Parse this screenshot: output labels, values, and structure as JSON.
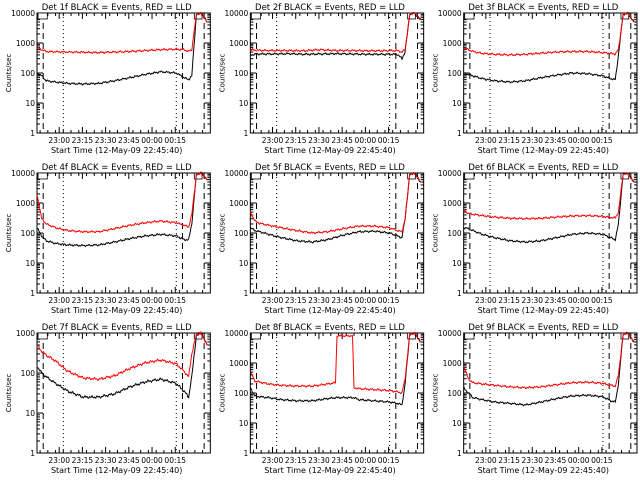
{
  "figure": {
    "start_time_label": "Start Time (12-May-09 22:45:40)",
    "ylabel": "Counts/sec",
    "colors": {
      "events": "#000000",
      "lld": "#ff0000"
    }
  },
  "chart_data": [
    {
      "type": "line",
      "title": "Det 1f BLACK = Events, RED = LLD",
      "xlabel": "Start Time (12-May-09 22:45:40)",
      "ylabel": "Counts/sec",
      "x_ticks": [
        "23:00",
        "23:15",
        "23:30",
        "23:45",
        "00:00",
        "00:15"
      ],
      "y_ticks": [
        "1",
        "10",
        "100",
        "1000",
        "10000"
      ],
      "ylim": [
        1,
        10000
      ],
      "yscale": "log",
      "series": [
        {
          "color": "#000000",
          "x_min": [
            0,
            3,
            6,
            12,
            20,
            30,
            40,
            50,
            60,
            70,
            80,
            90,
            95,
            98,
            100,
            103,
            106,
            110
          ],
          "values": [
            100,
            80,
            55,
            50,
            45,
            43,
            45,
            55,
            70,
            90,
            110,
            100,
            70,
            60,
            80,
            9000,
            10000,
            5000
          ]
        },
        {
          "color": "#ff0000",
          "x_min": [
            0,
            3,
            6,
            12,
            20,
            30,
            40,
            50,
            60,
            70,
            80,
            90,
            95,
            98,
            100,
            103,
            106,
            110
          ],
          "values": [
            700,
            600,
            520,
            510,
            500,
            490,
            480,
            500,
            520,
            560,
            600,
            620,
            600,
            520,
            600,
            9000,
            10000,
            5000
          ]
        }
      ]
    },
    {
      "type": "line",
      "title": "Det 2f BLACK = Events, RED = LLD",
      "xlabel": "Start Time (12-May-09 22:45:40)",
      "ylabel": "Counts/sec",
      "x_ticks": [
        "23:00",
        "23:15",
        "23:30",
        "23:45",
        "00:00",
        "00:15"
      ],
      "y_ticks": [
        "1",
        "10",
        "100",
        "1000",
        "10000"
      ],
      "ylim": [
        1,
        10000
      ],
      "yscale": "log",
      "series": [
        {
          "color": "#000000",
          "x_min": [
            0,
            3,
            6,
            15,
            25,
            35,
            45,
            55,
            65,
            75,
            85,
            95,
            98,
            100,
            103,
            106,
            110
          ],
          "values": [
            400,
            420,
            430,
            430,
            440,
            420,
            430,
            440,
            430,
            420,
            420,
            420,
            300,
            500,
            9000,
            10000,
            6000
          ]
        },
        {
          "color": "#ff0000",
          "x_min": [
            0,
            3,
            6,
            15,
            25,
            35,
            45,
            55,
            65,
            75,
            85,
            95,
            98,
            100,
            103,
            106,
            110
          ],
          "values": [
            600,
            580,
            570,
            560,
            560,
            550,
            600,
            560,
            560,
            550,
            550,
            560,
            500,
            600,
            9000,
            10000,
            6000
          ]
        }
      ]
    },
    {
      "type": "line",
      "title": "Det 3f BLACK = Events, RED = LLD",
      "xlabel": "Start Time (12-May-09 22:45:40)",
      "ylabel": "Counts/sec",
      "x_ticks": [
        "23:00",
        "23:15",
        "23:30",
        "23:45",
        "00:00",
        "00:15"
      ],
      "y_ticks": [
        "1",
        "10",
        "100",
        "1000",
        "10000"
      ],
      "ylim": [
        1,
        10000
      ],
      "yscale": "log",
      "series": [
        {
          "color": "#000000",
          "x_min": [
            0,
            3,
            6,
            12,
            20,
            30,
            40,
            50,
            60,
            70,
            80,
            90,
            95,
            98,
            100,
            103,
            106,
            110
          ],
          "values": [
            100,
            90,
            80,
            65,
            55,
            50,
            55,
            70,
            85,
            100,
            95,
            80,
            65,
            60,
            400,
            9000,
            10000,
            5000
          ]
        },
        {
          "color": "#ff0000",
          "x_min": [
            0,
            3,
            6,
            12,
            20,
            30,
            40,
            50,
            60,
            70,
            80,
            90,
            95,
            98,
            100,
            103,
            106,
            110
          ],
          "values": [
            700,
            600,
            520,
            450,
            420,
            400,
            420,
            460,
            500,
            520,
            520,
            480,
            450,
            430,
            600,
            9000,
            10000,
            5000
          ]
        }
      ]
    },
    {
      "type": "line",
      "title": "Det 4f BLACK = Events, RED = LLD",
      "xlabel": "Start Time (12-May-09 22:45:40)",
      "ylabel": "Counts/sec",
      "x_ticks": [
        "23:00",
        "23:15",
        "23:30",
        "23:45",
        "00:00",
        "00:15"
      ],
      "y_ticks": [
        "1",
        "10",
        "100",
        "1000",
        "10000"
      ],
      "ylim": [
        1,
        10000
      ],
      "yscale": "log",
      "series": [
        {
          "color": "#000000",
          "x_min": [
            0,
            3,
            6,
            12,
            20,
            30,
            40,
            50,
            60,
            70,
            80,
            90,
            95,
            98,
            100,
            103,
            106,
            110
          ],
          "values": [
            150,
            80,
            55,
            45,
            40,
            38,
            40,
            50,
            65,
            80,
            90,
            80,
            60,
            60,
            200,
            9000,
            10000,
            6000
          ]
        },
        {
          "color": "#ff0000",
          "x_min": [
            0,
            3,
            6,
            12,
            20,
            30,
            40,
            50,
            60,
            70,
            80,
            90,
            95,
            98,
            100,
            103,
            106,
            110
          ],
          "values": [
            2000,
            300,
            200,
            150,
            120,
            110,
            110,
            140,
            180,
            220,
            250,
            220,
            180,
            160,
            400,
            9000,
            10000,
            6000
          ]
        }
      ]
    },
    {
      "type": "line",
      "title": "Det 5f BLACK = Events, RED = LLD",
      "xlabel": "Start Time (12-May-09 22:45:40)",
      "ylabel": "Counts/sec",
      "x_ticks": [
        "23:00",
        "23:15",
        "23:30",
        "23:45",
        "00:00",
        "00:15"
      ],
      "y_ticks": [
        "1",
        "10",
        "100",
        "1000",
        "10000"
      ],
      "ylim": [
        1,
        10000
      ],
      "yscale": "log",
      "series": [
        {
          "color": "#000000",
          "x_min": [
            0,
            3,
            6,
            12,
            20,
            30,
            40,
            50,
            60,
            70,
            80,
            90,
            95,
            98,
            100,
            103,
            106,
            110
          ],
          "values": [
            150,
            120,
            110,
            90,
            70,
            55,
            50,
            60,
            85,
            110,
            115,
            100,
            80,
            70,
            300,
            9000,
            10000,
            5000
          ]
        },
        {
          "color": "#ff0000",
          "x_min": [
            0,
            3,
            6,
            12,
            20,
            30,
            40,
            50,
            60,
            70,
            80,
            90,
            95,
            98,
            100,
            103,
            106,
            110
          ],
          "values": [
            500,
            250,
            210,
            180,
            150,
            120,
            100,
            110,
            140,
            170,
            170,
            150,
            120,
            110,
            300,
            9000,
            10000,
            5000
          ]
        }
      ]
    },
    {
      "type": "line",
      "title": "Det 6f BLACK = Events, RED = LLD",
      "xlabel": "Start Time (12-May-09 22:45:40)",
      "ylabel": "Counts/sec",
      "x_ticks": [
        "23:00",
        "23:15",
        "23:30",
        "23:45",
        "00:00",
        "00:15"
      ],
      "y_ticks": [
        "1",
        "10",
        "100",
        "1000",
        "10000"
      ],
      "ylim": [
        1,
        10000
      ],
      "yscale": "log",
      "series": [
        {
          "color": "#000000",
          "x_min": [
            0,
            3,
            6,
            12,
            20,
            30,
            40,
            50,
            60,
            70,
            80,
            90,
            95,
            98,
            100,
            103,
            106,
            110
          ],
          "values": [
            150,
            140,
            120,
            90,
            70,
            55,
            50,
            55,
            70,
            90,
            100,
            90,
            70,
            60,
            200,
            9000,
            10000,
            5000
          ]
        },
        {
          "color": "#ff0000",
          "x_min": [
            0,
            3,
            6,
            12,
            20,
            30,
            40,
            50,
            60,
            70,
            80,
            90,
            95,
            98,
            100,
            103,
            106,
            110
          ],
          "values": [
            600,
            450,
            420,
            380,
            340,
            310,
            300,
            310,
            340,
            370,
            380,
            360,
            330,
            320,
            500,
            9000,
            10000,
            5000
          ]
        }
      ]
    },
    {
      "type": "line",
      "title": "Det 7f BLACK = Events, RED = LLD",
      "xlabel": "Start Time (12-May-09 22:45:40)",
      "ylabel": "Counts/sec",
      "x_ticks": [
        "23:00",
        "23:15",
        "23:30",
        "23:45",
        "00:00",
        "00:15"
      ],
      "y_ticks": [
        "1",
        "10",
        "100",
        "1000"
      ],
      "ylim": [
        1,
        1000
      ],
      "yscale": "log",
      "series": [
        {
          "color": "#000000",
          "x_min": [
            0,
            3,
            6,
            12,
            20,
            30,
            40,
            50,
            60,
            70,
            80,
            90,
            95,
            98,
            100,
            103,
            106,
            110
          ],
          "values": [
            150,
            100,
            80,
            55,
            35,
            25,
            25,
            30,
            45,
            60,
            70,
            55,
            35,
            25,
            80,
            900,
            1000,
            500
          ]
        },
        {
          "color": "#ff0000",
          "x_min": [
            0,
            3,
            6,
            12,
            20,
            30,
            40,
            50,
            60,
            70,
            80,
            90,
            95,
            98,
            100,
            103,
            106,
            110
          ],
          "values": [
            500,
            350,
            280,
            200,
            110,
            75,
            70,
            85,
            130,
            180,
            210,
            170,
            110,
            80,
            300,
            900,
            1000,
            500
          ]
        }
      ]
    },
    {
      "type": "line",
      "title": "Det 8f BLACK = Events, RED = LLD",
      "xlabel": "Start Time (12-May-09 22:45:40)",
      "ylabel": "Counts/sec",
      "x_ticks": [
        "23:00",
        "23:15",
        "23:30",
        "23:45",
        "00:00",
        "00:15"
      ],
      "y_ticks": [
        "1",
        "10",
        "100",
        "1000",
        "10000"
      ],
      "ylim": [
        1,
        10000
      ],
      "yscale": "log",
      "series": [
        {
          "color": "#000000",
          "x_min": [
            0,
            3,
            6,
            12,
            20,
            30,
            40,
            50,
            55,
            56,
            66,
            67,
            70,
            80,
            90,
            95,
            98,
            100,
            103,
            106,
            110
          ],
          "values": [
            150,
            80,
            75,
            70,
            60,
            55,
            55,
            65,
            70,
            70,
            70,
            70,
            60,
            55,
            50,
            45,
            40,
            200,
            9000,
            10000,
            5000
          ]
        },
        {
          "color": "#ff0000",
          "x_min": [
            0,
            3,
            6,
            12,
            20,
            30,
            40,
            50,
            55,
            56,
            66,
            67,
            70,
            80,
            90,
            95,
            98,
            100,
            103,
            106,
            110
          ],
          "values": [
            500,
            250,
            230,
            200,
            180,
            170,
            170,
            200,
            220,
            8000,
            8000,
            150,
            140,
            130,
            120,
            110,
            100,
            300,
            9000,
            10000,
            5000
          ]
        }
      ]
    },
    {
      "type": "line",
      "title": "Det 9f BLACK = Events, RED = LLD",
      "xlabel": "Start Time (12-May-09 22:45:40)",
      "ylabel": "Counts/sec",
      "x_ticks": [
        "23:00",
        "23:15",
        "23:30",
        "23:45",
        "00:00",
        "00:15"
      ],
      "y_ticks": [
        "1",
        "10",
        "100",
        "1000",
        "10000"
      ],
      "ylim": [
        1,
        10000
      ],
      "yscale": "log",
      "series": [
        {
          "color": "#000000",
          "x_min": [
            0,
            3,
            6,
            12,
            20,
            30,
            40,
            50,
            60,
            70,
            80,
            90,
            95,
            98,
            100,
            103,
            106,
            110
          ],
          "values": [
            150,
            100,
            70,
            60,
            50,
            45,
            40,
            50,
            65,
            80,
            85,
            75,
            55,
            50,
            200,
            9000,
            10000,
            5000
          ]
        },
        {
          "color": "#ff0000",
          "x_min": [
            0,
            3,
            6,
            12,
            20,
            30,
            40,
            50,
            60,
            70,
            80,
            90,
            95,
            98,
            100,
            103,
            106,
            110
          ],
          "values": [
            800,
            300,
            220,
            200,
            180,
            160,
            150,
            160,
            190,
            220,
            230,
            210,
            180,
            170,
            400,
            9000,
            10000,
            5000
          ]
        }
      ]
    }
  ]
}
